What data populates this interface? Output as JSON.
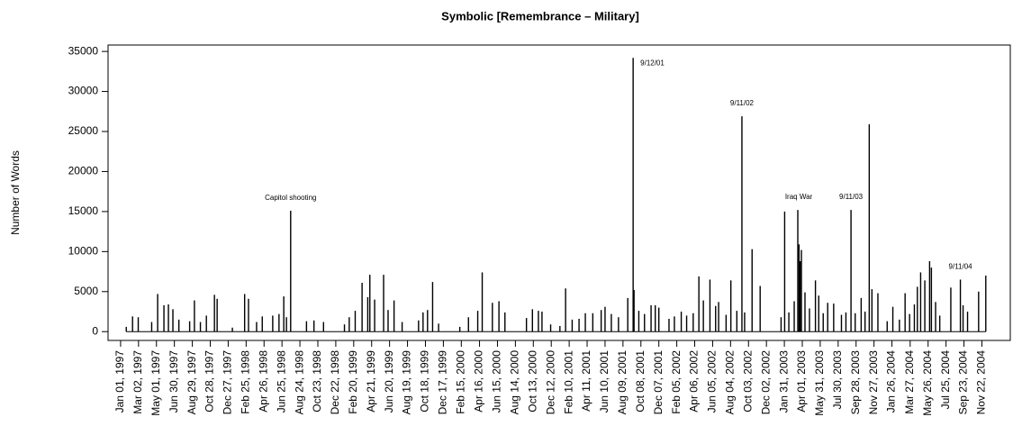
{
  "chart_data": {
    "type": "spike",
    "title": "Symbolic [Remembrance – Military]",
    "y_label": "Number of Words",
    "color": "#000000",
    "xlim": [
      "1996-11-20",
      "2005-02-25"
    ],
    "ylim": [
      -1100,
      35800
    ],
    "yticks": [
      0,
      5000,
      10000,
      15000,
      20000,
      25000,
      30000,
      35000
    ],
    "xticks": [
      {
        "value": "1997-01-01",
        "label": "Jan 01, 1997"
      },
      {
        "value": "1997-03-02",
        "label": "Mar 02, 1997"
      },
      {
        "value": "1997-05-01",
        "label": "May 01, 1997"
      },
      {
        "value": "1997-06-30",
        "label": "Jun 30, 1997"
      },
      {
        "value": "1997-08-29",
        "label": "Aug 29, 1997"
      },
      {
        "value": "1997-10-28",
        "label": "Oct 28, 1997"
      },
      {
        "value": "1997-12-27",
        "label": "Dec 27, 1997"
      },
      {
        "value": "1998-02-25",
        "label": "Feb 25, 1998"
      },
      {
        "value": "1998-04-26",
        "label": "Apr 26, 1998"
      },
      {
        "value": "1998-06-25",
        "label": "Jun 25, 1998"
      },
      {
        "value": "1998-08-24",
        "label": "Aug 24, 1998"
      },
      {
        "value": "1998-10-23",
        "label": "Oct 23, 1998"
      },
      {
        "value": "1998-12-22",
        "label": "Dec 22, 1998"
      },
      {
        "value": "1999-02-20",
        "label": "Feb 20, 1999"
      },
      {
        "value": "1999-04-21",
        "label": "Apr 21, 1999"
      },
      {
        "value": "1999-06-20",
        "label": "Jun 20, 1999"
      },
      {
        "value": "1999-08-19",
        "label": "Aug 19, 1999"
      },
      {
        "value": "1999-10-18",
        "label": "Oct 18, 1999"
      },
      {
        "value": "1999-12-17",
        "label": "Dec 17, 1999"
      },
      {
        "value": "2000-02-15",
        "label": "Feb 15, 2000"
      },
      {
        "value": "2000-04-16",
        "label": "Apr 16, 2000"
      },
      {
        "value": "2000-06-15",
        "label": "Jun 15, 2000"
      },
      {
        "value": "2000-08-14",
        "label": "Aug 14, 2000"
      },
      {
        "value": "2000-10-13",
        "label": "Oct 13, 2000"
      },
      {
        "value": "2000-12-12",
        "label": "Dec 12, 2000"
      },
      {
        "value": "2001-02-10",
        "label": "Feb 10, 2001"
      },
      {
        "value": "2001-04-11",
        "label": "Apr 11, 2001"
      },
      {
        "value": "2001-06-10",
        "label": "Jun 10, 2001"
      },
      {
        "value": "2001-08-09",
        "label": "Aug 09, 2001"
      },
      {
        "value": "2001-10-08",
        "label": "Oct 08, 2001"
      },
      {
        "value": "2001-12-07",
        "label": "Dec 07, 2001"
      },
      {
        "value": "2002-02-05",
        "label": "Feb 05, 2002"
      },
      {
        "value": "2002-04-06",
        "label": "Apr 06, 2002"
      },
      {
        "value": "2002-06-05",
        "label": "Jun 05, 2002"
      },
      {
        "value": "2002-08-04",
        "label": "Aug 04, 2002"
      },
      {
        "value": "2002-10-03",
        "label": "Oct 03, 2002"
      },
      {
        "value": "2002-12-02",
        "label": "Dec 02, 2002"
      },
      {
        "value": "2003-01-31",
        "label": "Jan 31, 2003"
      },
      {
        "value": "2003-04-01",
        "label": "Apr 01, 2003"
      },
      {
        "value": "2003-05-31",
        "label": "May 31, 2003"
      },
      {
        "value": "2003-07-30",
        "label": "Jul 30, 2003"
      },
      {
        "value": "2003-09-28",
        "label": "Sep 28, 2003"
      },
      {
        "value": "2003-11-27",
        "label": "Nov 27, 2003"
      },
      {
        "value": "2004-01-26",
        "label": "Jan 26, 2004"
      },
      {
        "value": "2004-03-27",
        "label": "Mar 27, 2004"
      },
      {
        "value": "2004-05-26",
        "label": "May 26, 2004"
      },
      {
        "value": "2004-07-25",
        "label": "Jul 25, 2004"
      },
      {
        "value": "2004-09-23",
        "label": "Sep 23, 2004"
      },
      {
        "value": "2004-11-22",
        "label": "Nov 22, 2004"
      }
    ],
    "x": [
      "1997-01-20",
      "1997-02-10",
      "1997-03-01",
      "1997-04-15",
      "1997-05-05",
      "1997-05-26",
      "1997-06-10",
      "1997-06-25",
      "1997-07-15",
      "1997-08-20",
      "1997-09-05",
      "1997-09-25",
      "1997-10-15",
      "1997-11-11",
      "1997-11-20",
      "1998-01-10",
      "1998-02-20",
      "1998-03-05",
      "1998-04-01",
      "1998-04-20",
      "1998-05-25",
      "1998-06-15",
      "1998-07-01",
      "1998-07-10",
      "1998-07-24",
      "1998-09-15",
      "1998-10-10",
      "1998-11-11",
      "1999-01-20",
      "1999-02-05",
      "1999-02-25",
      "1999-03-20",
      "1999-04-08",
      "1999-04-15",
      "1999-05-01",
      "1999-05-31",
      "1999-06-15",
      "1999-07-05",
      "1999-08-01",
      "1999-09-25",
      "1999-10-10",
      "1999-10-25",
      "1999-11-11",
      "1999-12-01",
      "2000-02-10",
      "2000-03-10",
      "2000-04-10",
      "2000-04-25",
      "2000-05-29",
      "2000-06-20",
      "2000-07-10",
      "2000-09-20",
      "2000-10-10",
      "2000-10-30",
      "2000-11-11",
      "2000-12-10",
      "2001-01-10",
      "2001-01-29",
      "2001-02-20",
      "2001-03-15",
      "2001-04-05",
      "2001-04-30",
      "2001-05-28",
      "2001-06-10",
      "2001-07-01",
      "2001-07-25",
      "2001-08-25",
      "2001-09-12",
      "2001-09-15",
      "2001-10-01",
      "2001-10-20",
      "2001-11-11",
      "2001-11-25",
      "2001-12-07",
      "2002-01-10",
      "2002-01-28",
      "2002-02-20",
      "2002-03-10",
      "2002-04-01",
      "2002-04-20",
      "2002-05-05",
      "2002-05-27",
      "2002-06-15",
      "2002-06-25",
      "2002-07-20",
      "2002-08-05",
      "2002-08-25",
      "2002-09-11",
      "2002-09-20",
      "2002-10-15",
      "2002-11-11",
      "2003-01-20",
      "2003-02-01",
      "2003-02-15",
      "2003-03-05",
      "2003-03-17",
      "2003-03-21",
      "2003-03-25",
      "2003-03-29",
      "2003-04-10",
      "2003-04-25",
      "2003-05-15",
      "2003-05-26",
      "2003-06-10",
      "2003-06-25",
      "2003-07-15",
      "2003-08-10",
      "2003-08-25",
      "2003-09-11",
      "2003-09-25",
      "2003-10-15",
      "2003-10-28",
      "2003-11-11",
      "2003-11-20",
      "2003-12-10",
      "2004-01-10",
      "2004-01-29",
      "2004-02-20",
      "2004-03-10",
      "2004-03-25",
      "2004-04-10",
      "2004-04-20",
      "2004-05-01",
      "2004-05-15",
      "2004-05-31",
      "2004-06-06",
      "2004-06-20",
      "2004-07-04",
      "2004-08-10",
      "2004-09-11",
      "2004-09-20",
      "2004-10-05",
      "2004-11-11",
      "2004-12-05"
    ],
    "values": [
      600,
      1900,
      1800,
      1200,
      4700,
      3300,
      3400,
      2800,
      1500,
      1300,
      3900,
      1200,
      2000,
      4600,
      4100,
      500,
      4700,
      4100,
      1200,
      1900,
      2000,
      2200,
      4400,
      1800,
      15100,
      1300,
      1400,
      1200,
      900,
      1800,
      2600,
      6100,
      4300,
      7100,
      4000,
      7100,
      2700,
      3900,
      1200,
      1400,
      2400,
      2700,
      6200,
      1000,
      600,
      1800,
      2600,
      7400,
      3600,
      3800,
      2400,
      1700,
      2800,
      2600,
      2500,
      900,
      700,
      5400,
      1500,
      1600,
      2300,
      2300,
      2700,
      3100,
      2200,
      1800,
      4200,
      34200,
      5200,
      2600,
      2200,
      3300,
      3300,
      3000,
      1600,
      1900,
      2500,
      2000,
      2300,
      6900,
      3900,
      6500,
      3200,
      3700,
      2100,
      6400,
      2600,
      26900,
      2400,
      10300,
      5700,
      1800,
      15000,
      2400,
      3800,
      15200,
      10900,
      8800,
      10200,
      4900,
      2900,
      6400,
      4500,
      2300,
      3600,
      3500,
      2100,
      2400,
      15200,
      2300,
      4200,
      2500,
      25900,
      5300,
      4800,
      1300,
      3100,
      1500,
      4800,
      2200,
      3400,
      5600,
      7400,
      6400,
      8800,
      8000,
      3700,
      2000,
      5500,
      6500,
      3300,
      2500,
      5000,
      7000
    ],
    "annotations": [
      {
        "text": "Capitol shooting",
        "x": "1998-07-24"
      },
      {
        "text": "9/12/01",
        "x": "2001-09-12"
      },
      {
        "text": "9/11/02",
        "x": "2002-09-11"
      },
      {
        "text": "Iraq War",
        "x": "2003-03-20"
      },
      {
        "text": "9/11/03",
        "x": "2003-09-11"
      },
      {
        "text": "9/11/04",
        "x": "2004-09-11"
      }
    ]
  }
}
